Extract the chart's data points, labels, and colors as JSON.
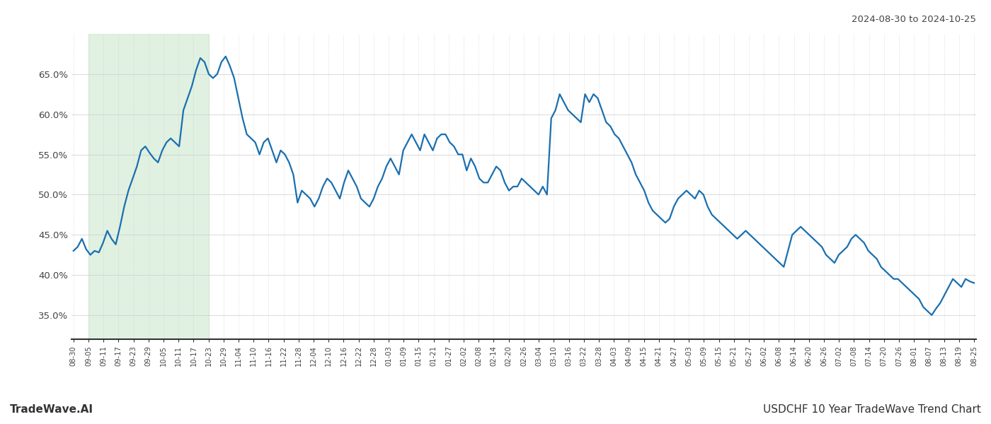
{
  "title_top_right": "2024-08-30 to 2024-10-25",
  "title_bottom_left": "TradeWave.AI",
  "title_bottom_right": "USDCHF 10 Year TradeWave Trend Chart",
  "ylim": [
    32.0,
    70.0
  ],
  "yticks": [
    35.0,
    40.0,
    45.0,
    50.0,
    55.0,
    60.0,
    65.0
  ],
  "yticklabels": [
    "35.0%",
    "40.0%",
    "45.0%",
    "50.0%",
    "55.0%",
    "60.0%",
    "65.0%"
  ],
  "line_color": "#1a6faf",
  "line_width": 1.6,
  "bg_color": "#ffffff",
  "plot_bg_color": "#ffffff",
  "grid_color": "#cccccc",
  "shade_color": "#c8e6c9",
  "shade_alpha": 0.55,
  "xtick_labels": [
    "08-30",
    "09-05",
    "09-11",
    "09-17",
    "09-23",
    "09-29",
    "10-05",
    "10-11",
    "10-17",
    "10-23",
    "10-29",
    "11-04",
    "11-10",
    "11-16",
    "11-22",
    "11-28",
    "12-04",
    "12-10",
    "12-16",
    "12-22",
    "12-28",
    "01-03",
    "01-09",
    "01-15",
    "01-21",
    "01-27",
    "02-02",
    "02-08",
    "02-14",
    "02-20",
    "02-26",
    "03-04",
    "03-10",
    "03-16",
    "03-22",
    "03-28",
    "04-03",
    "04-09",
    "04-15",
    "04-21",
    "04-27",
    "05-03",
    "05-09",
    "05-15",
    "05-21",
    "05-27",
    "06-02",
    "06-08",
    "06-14",
    "06-20",
    "06-26",
    "07-02",
    "07-08",
    "07-14",
    "07-20",
    "07-26",
    "08-01",
    "08-07",
    "08-13",
    "08-19",
    "08-25"
  ],
  "shade_start_label": "09-05",
  "shade_end_label": "10-23",
  "values": [
    43.0,
    43.5,
    44.5,
    43.2,
    42.5,
    43.0,
    42.8,
    44.0,
    45.5,
    44.5,
    43.8,
    46.0,
    48.5,
    50.5,
    52.0,
    53.5,
    55.5,
    56.0,
    55.2,
    54.5,
    54.0,
    55.5,
    56.5,
    57.0,
    56.5,
    56.0,
    60.5,
    62.0,
    63.5,
    65.5,
    67.0,
    66.5,
    65.0,
    64.5,
    65.0,
    66.5,
    67.2,
    66.0,
    64.5,
    62.0,
    59.5,
    57.5,
    57.0,
    56.5,
    55.0,
    56.5,
    57.0,
    55.5,
    54.0,
    55.5,
    55.0,
    54.0,
    52.5,
    49.0,
    50.5,
    50.0,
    49.5,
    48.5,
    49.5,
    51.0,
    52.0,
    51.5,
    50.5,
    49.5,
    51.5,
    53.0,
    52.0,
    51.0,
    49.5,
    49.0,
    48.5,
    49.5,
    51.0,
    52.0,
    53.5,
    54.5,
    53.5,
    52.5,
    55.5,
    56.5,
    57.5,
    56.5,
    55.5,
    57.5,
    56.5,
    55.5,
    57.0,
    57.5,
    57.5,
    56.5,
    56.0,
    55.0,
    55.0,
    53.0,
    54.5,
    53.5,
    52.0,
    51.5,
    51.5,
    52.5,
    53.5,
    53.0,
    51.5,
    50.5,
    51.0,
    51.0,
    52.0,
    51.5,
    51.0,
    50.5,
    50.0,
    51.0,
    50.0,
    59.5,
    60.5,
    62.5,
    61.5,
    60.5,
    60.0,
    59.5,
    59.0,
    62.5,
    61.5,
    62.5,
    62.0,
    60.5,
    59.0,
    58.5,
    57.5,
    57.0,
    56.0,
    55.0,
    54.0,
    52.5,
    51.5,
    50.5,
    49.0,
    48.0,
    47.5,
    47.0,
    46.5,
    47.0,
    48.5,
    49.5,
    50.0,
    50.5,
    50.0,
    49.5,
    50.5,
    50.0,
    48.5,
    47.5,
    47.0,
    46.5,
    46.0,
    45.5,
    45.0,
    44.5,
    45.0,
    45.5,
    45.0,
    44.5,
    44.0,
    43.5,
    43.0,
    42.5,
    42.0,
    41.5,
    41.0,
    43.0,
    45.0,
    45.5,
    46.0,
    45.5,
    45.0,
    44.5,
    44.0,
    43.5,
    42.5,
    42.0,
    41.5,
    42.5,
    43.0,
    43.5,
    44.5,
    45.0,
    44.5,
    44.0,
    43.0,
    42.5,
    42.0,
    41.0,
    40.5,
    40.0,
    39.5,
    39.5,
    39.0,
    38.5,
    38.0,
    37.5,
    37.0,
    36.0,
    35.5,
    35.0,
    35.8,
    36.5,
    37.5,
    38.5,
    39.5,
    39.0,
    38.5,
    39.5,
    39.2,
    39.0
  ]
}
